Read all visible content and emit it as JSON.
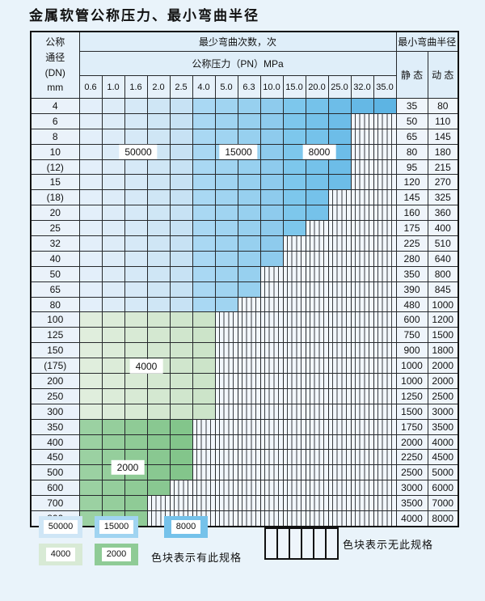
{
  "title": "金属软管公称压力、最小弯曲半径",
  "table": {
    "corner_lines": [
      "公称",
      "通径",
      "(DN)",
      "mm"
    ],
    "bend_cycles_header": "最少弯曲次数，次",
    "pressure_header": "公称压力（PN）MPa",
    "radius_header": "最小弯曲半径",
    "static_header": "静 态",
    "dynamic_header": "动 态",
    "pressure_columns": [
      "0.6",
      "1.0",
      "1.6",
      "2.0",
      "2.5",
      "4.0",
      "5.0",
      "6.3",
      "10.0",
      "15.0",
      "20.0",
      "25.0",
      "32.0",
      "35.0"
    ]
  },
  "rows": [
    {
      "dn": "4",
      "zone": "blue",
      "last_pn": 13,
      "static": "35",
      "dynamic": "80"
    },
    {
      "dn": "6",
      "zone": "blue",
      "last_pn": 11,
      "static": "50",
      "dynamic": "110"
    },
    {
      "dn": "8",
      "zone": "blue",
      "last_pn": 11,
      "static": "65",
      "dynamic": "145"
    },
    {
      "dn": "10",
      "zone": "blue",
      "last_pn": 11,
      "static": "80",
      "dynamic": "180"
    },
    {
      "dn": "(12)",
      "zone": "blue",
      "last_pn": 11,
      "static": "95",
      "dynamic": "215"
    },
    {
      "dn": "15",
      "zone": "blue",
      "last_pn": 11,
      "static": "120",
      "dynamic": "270"
    },
    {
      "dn": "(18)",
      "zone": "blue",
      "last_pn": 10,
      "static": "145",
      "dynamic": "325"
    },
    {
      "dn": "20",
      "zone": "blue",
      "last_pn": 10,
      "static": "160",
      "dynamic": "360"
    },
    {
      "dn": "25",
      "zone": "blue",
      "last_pn": 9,
      "static": "175",
      "dynamic": "400"
    },
    {
      "dn": "32",
      "zone": "blue",
      "last_pn": 8,
      "static": "225",
      "dynamic": "510"
    },
    {
      "dn": "40",
      "zone": "blue",
      "last_pn": 8,
      "static": "280",
      "dynamic": "640"
    },
    {
      "dn": "50",
      "zone": "blue",
      "last_pn": 7,
      "static": "350",
      "dynamic": "800"
    },
    {
      "dn": "65",
      "zone": "blue",
      "last_pn": 7,
      "static": "390",
      "dynamic": "845"
    },
    {
      "dn": "80",
      "zone": "blue",
      "last_pn": 6,
      "static": "480",
      "dynamic": "1000"
    },
    {
      "dn": "100",
      "zone": "green1",
      "last_pn": 5,
      "static": "600",
      "dynamic": "1200"
    },
    {
      "dn": "125",
      "zone": "green1",
      "last_pn": 5,
      "static": "750",
      "dynamic": "1500"
    },
    {
      "dn": "150",
      "zone": "green1",
      "last_pn": 5,
      "static": "900",
      "dynamic": "1800"
    },
    {
      "dn": "(175)",
      "zone": "green1",
      "last_pn": 5,
      "static": "1000",
      "dynamic": "2000"
    },
    {
      "dn": "200",
      "zone": "green1",
      "last_pn": 5,
      "static": "1000",
      "dynamic": "2000"
    },
    {
      "dn": "250",
      "zone": "green1",
      "last_pn": 5,
      "static": "1250",
      "dynamic": "2500"
    },
    {
      "dn": "300",
      "zone": "green1",
      "last_pn": 5,
      "static": "1500",
      "dynamic": "3000"
    },
    {
      "dn": "350",
      "zone": "green2",
      "last_pn": 4,
      "static": "1750",
      "dynamic": "3500"
    },
    {
      "dn": "400",
      "zone": "green2",
      "last_pn": 4,
      "static": "2000",
      "dynamic": "4000"
    },
    {
      "dn": "450",
      "zone": "green2",
      "last_pn": 4,
      "static": "2250",
      "dynamic": "4500"
    },
    {
      "dn": "500",
      "zone": "green2",
      "last_pn": 4,
      "static": "2500",
      "dynamic": "5000"
    },
    {
      "dn": "600",
      "zone": "green2",
      "last_pn": 3,
      "static": "3000",
      "dynamic": "6000"
    },
    {
      "dn": "700",
      "zone": "green2",
      "last_pn": 2,
      "static": "3500",
      "dynamic": "7000"
    },
    {
      "dn": "800",
      "zone": "green2",
      "last_pn": 2,
      "static": "4000",
      "dynamic": "8000"
    }
  ],
  "overlays": {
    "v50000": "50000",
    "v15000": "15000",
    "v8000": "8000",
    "v4000": "4000",
    "v2000": "2000"
  },
  "colors": {
    "blue_light": [
      "#e3effa",
      "#ddecf8",
      "#d6e9f7",
      "#cfe6f5",
      "#c7e2f4"
    ],
    "blue_mid": [
      "#a9d8f3",
      "#a0d4f1",
      "#97d0ef",
      "#8ecbed"
    ],
    "blue_dark": [
      "#7dc7ec",
      "#75c2ea",
      "#6dbde8",
      "#65b8e5",
      "#5db4e3"
    ],
    "green_light": [
      "#e0eedd",
      "#dcecd9",
      "#d8ead5",
      "#d4e8d1",
      "#d0e6cd",
      "#cce4c9"
    ],
    "green_dark": [
      "#9bd1a2",
      "#95ce9c",
      "#8fcb96",
      "#89c891",
      "#83c58b",
      "#7dc286"
    ],
    "hatch_bg": "#f2f7fc",
    "page_bg": "#e9f3fa"
  },
  "legend": {
    "items": [
      {
        "label": "50000",
        "color": "#cfe6f6"
      },
      {
        "label": "15000",
        "color": "#a0d4f1"
      },
      {
        "label": "8000",
        "color": "#75c2ea"
      },
      {
        "label": "4000",
        "color": "#d8ead5"
      },
      {
        "label": "2000",
        "color": "#8fcb96"
      }
    ],
    "has_spec_text": "色块表示有此规格",
    "no_spec_text": "色块表示无此规格"
  }
}
